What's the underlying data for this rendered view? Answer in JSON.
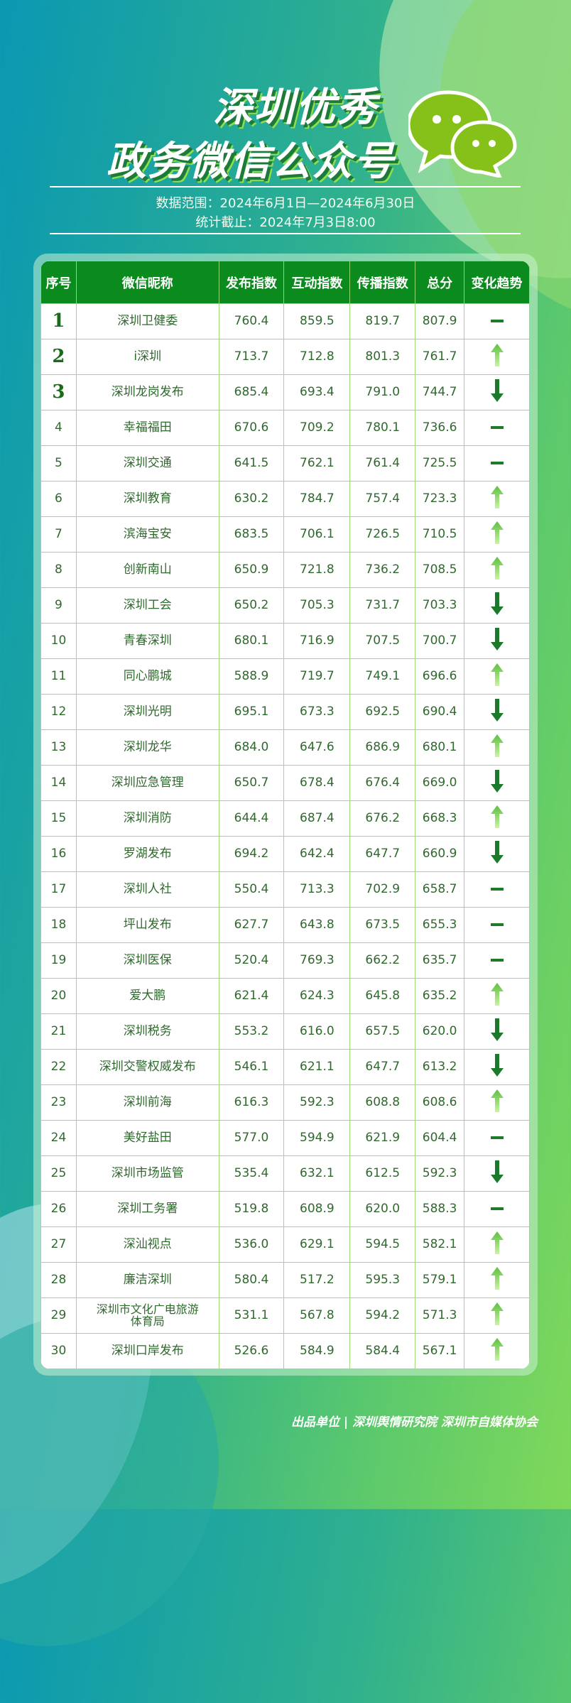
{
  "title_line1": "深圳优秀",
  "title_line2": "政务微信公众号",
  "data_range": "数据范围：2024年6月1日—2024年6月30日",
  "cutoff": "统计截止：2024年7月3日8:00",
  "footer": "出品单位 | 深圳舆情研究院 深圳市自媒体协会",
  "colors": {
    "header": "#0b8a1e",
    "up": "#8fe070",
    "down": "#1a7a2a",
    "flat": "#1f7a2a"
  },
  "table": {
    "headers": [
      "序号",
      "微信昵称",
      "发布指数",
      "互动指数",
      "传播指数",
      "总分",
      "变化趋势"
    ],
    "rows": [
      [
        "1",
        "深圳卫健委",
        "760.4",
        "859.5",
        "819.7",
        "807.9",
        "flat"
      ],
      [
        "2",
        "i深圳",
        "713.7",
        "712.8",
        "801.3",
        "761.7",
        "up"
      ],
      [
        "3",
        "深圳龙岗发布",
        "685.4",
        "693.4",
        "791.0",
        "744.7",
        "down"
      ],
      [
        "4",
        "幸福福田",
        "670.6",
        "709.2",
        "780.1",
        "736.6",
        "flat"
      ],
      [
        "5",
        "深圳交通",
        "641.5",
        "762.1",
        "761.4",
        "725.5",
        "flat"
      ],
      [
        "6",
        "深圳教育",
        "630.2",
        "784.7",
        "757.4",
        "723.3",
        "up"
      ],
      [
        "7",
        "滨海宝安",
        "683.5",
        "706.1",
        "726.5",
        "710.5",
        "up"
      ],
      [
        "8",
        "创新南山",
        "650.9",
        "721.8",
        "736.2",
        "708.5",
        "up"
      ],
      [
        "9",
        "深圳工会",
        "650.2",
        "705.3",
        "731.7",
        "703.3",
        "down"
      ],
      [
        "10",
        "青春深圳",
        "680.1",
        "716.9",
        "707.5",
        "700.7",
        "down"
      ],
      [
        "11",
        "同心鹏城",
        "588.9",
        "719.7",
        "749.1",
        "696.6",
        "up"
      ],
      [
        "12",
        "深圳光明",
        "695.1",
        "673.3",
        "692.5",
        "690.4",
        "down"
      ],
      [
        "13",
        "深圳龙华",
        "684.0",
        "647.6",
        "686.9",
        "680.1",
        "up"
      ],
      [
        "14",
        "深圳应急管理",
        "650.7",
        "678.4",
        "676.4",
        "669.0",
        "down"
      ],
      [
        "15",
        "深圳消防",
        "644.4",
        "687.4",
        "676.2",
        "668.3",
        "up"
      ],
      [
        "16",
        "罗湖发布",
        "694.2",
        "642.4",
        "647.7",
        "660.9",
        "down"
      ],
      [
        "17",
        "深圳人社",
        "550.4",
        "713.3",
        "702.9",
        "658.7",
        "flat"
      ],
      [
        "18",
        "坪山发布",
        "627.7",
        "643.8",
        "673.5",
        "655.3",
        "flat"
      ],
      [
        "19",
        "深圳医保",
        "520.4",
        "769.3",
        "662.2",
        "635.7",
        "flat"
      ],
      [
        "20",
        "爱大鹏",
        "621.4",
        "624.3",
        "645.8",
        "635.2",
        "up"
      ],
      [
        "21",
        "深圳税务",
        "553.2",
        "616.0",
        "657.5",
        "620.0",
        "down"
      ],
      [
        "22",
        "深圳交警权威发布",
        "546.1",
        "621.1",
        "647.7",
        "613.2",
        "down"
      ],
      [
        "23",
        "深圳前海",
        "616.3",
        "592.3",
        "608.8",
        "608.6",
        "up"
      ],
      [
        "24",
        "美好盐田",
        "577.0",
        "594.9",
        "621.9",
        "604.4",
        "flat"
      ],
      [
        "25",
        "深圳市场监管",
        "535.4",
        "632.1",
        "612.5",
        "592.3",
        "down"
      ],
      [
        "26",
        "深圳工务署",
        "519.8",
        "608.9",
        "620.0",
        "588.3",
        "flat"
      ],
      [
        "27",
        "深汕视点",
        "536.0",
        "629.1",
        "594.5",
        "582.1",
        "up"
      ],
      [
        "28",
        "廉洁深圳",
        "580.4",
        "517.2",
        "595.3",
        "579.1",
        "up"
      ],
      [
        "29",
        "深圳市文化广电旅游体育局",
        "531.1",
        "567.8",
        "594.2",
        "571.3",
        "up"
      ],
      [
        "30",
        "深圳口岸发布",
        "526.6",
        "584.9",
        "584.4",
        "567.1",
        "up"
      ]
    ]
  }
}
